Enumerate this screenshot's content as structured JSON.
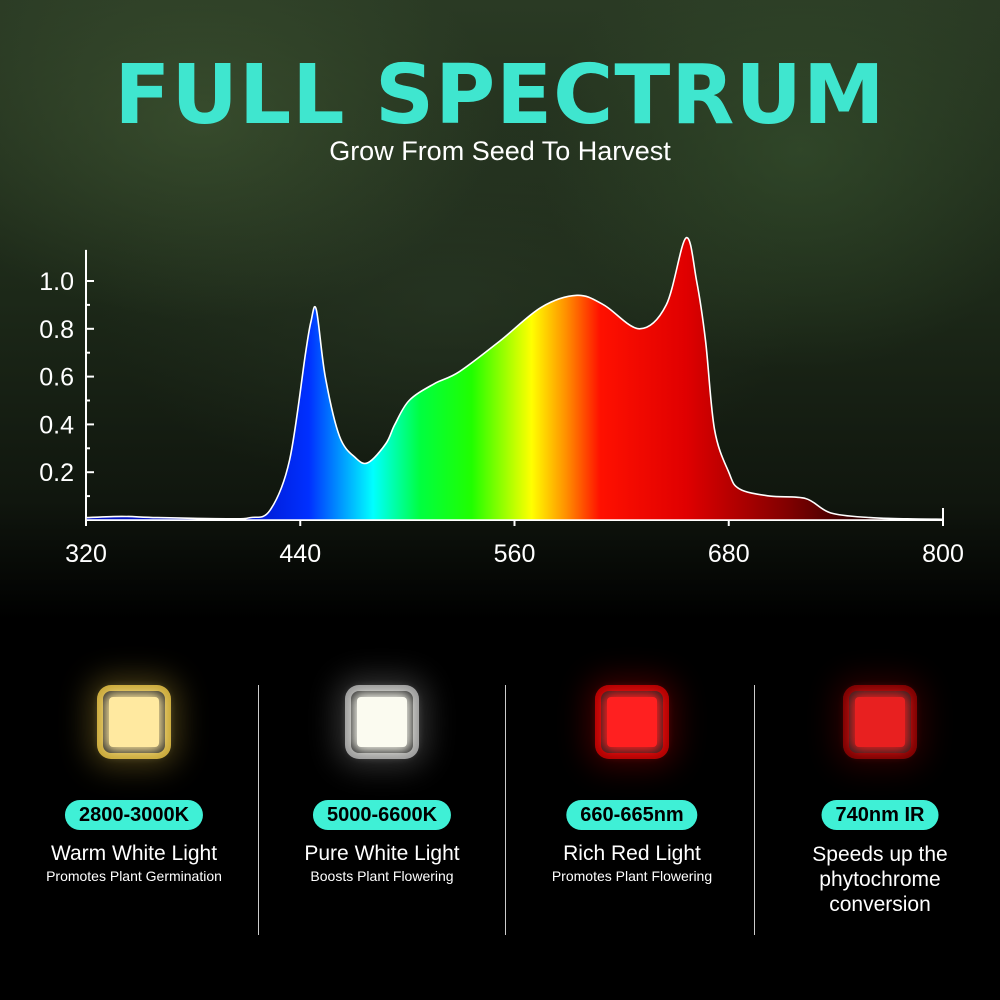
{
  "header": {
    "title": "FULL SPECTRUM",
    "subtitle": "Grow From Seed To Harvest"
  },
  "chart_data": {
    "type": "area",
    "title": "",
    "xlabel": "",
    "ylabel": "",
    "xlim": [
      320,
      800
    ],
    "ylim": [
      0,
      1.13
    ],
    "x_ticks": [
      "320",
      "440",
      "560",
      "680",
      "800"
    ],
    "y_ticks": [
      "0.2",
      "0.4",
      "0.6",
      "0.8",
      "1.0"
    ],
    "grid": false,
    "fill": "visible spectrum gradient",
    "x": [
      320,
      340,
      360,
      400,
      412,
      423,
      434,
      443,
      446,
      449,
      454,
      462,
      471,
      478,
      488,
      493,
      501,
      515,
      529,
      552,
      575,
      595,
      610,
      630,
      645,
      656,
      662,
      667,
      672,
      680,
      686,
      703,
      723,
      737,
      759,
      780,
      800
    ],
    "y": [
      0.01,
      0.015,
      0.01,
      0.005,
      0.01,
      0.04,
      0.25,
      0.7,
      0.83,
      0.88,
      0.6,
      0.35,
      0.26,
      0.24,
      0.32,
      0.4,
      0.5,
      0.57,
      0.62,
      0.75,
      0.89,
      0.94,
      0.9,
      0.8,
      0.9,
      1.18,
      1.0,
      0.75,
      0.38,
      0.2,
      0.13,
      0.1,
      0.09,
      0.03,
      0.01,
      0.005,
      0.003
    ]
  },
  "cards": [
    {
      "badge": "2800-3000K",
      "name": "Warm White Light",
      "desc": "Promotes Plant Germination",
      "chip_color": "#ffe9a0",
      "glow": "#c9a838",
      "icon": "warm-white-led-icon"
    },
    {
      "badge": "5000-6600K",
      "name": "Pure White Light",
      "desc": "Boosts Plant Flowering",
      "chip_color": "#fbfbf0",
      "glow": "#9a9a9a",
      "icon": "white-led-icon"
    },
    {
      "badge": "660-665nm",
      "name": "Rich Red Light",
      "desc": "Promotes Plant Flowering",
      "chip_color": "#ff2020",
      "glow": "#b00000",
      "icon": "red-led-icon"
    },
    {
      "badge": "740nm IR",
      "name": "Speeds up the phytochrome conversion",
      "desc": "",
      "chip_color": "#e82020",
      "glow": "#7a0000",
      "icon": "ir-led-icon"
    }
  ],
  "colors": {
    "accent": "#3fe6cf",
    "badge": "#3ff0d6"
  }
}
